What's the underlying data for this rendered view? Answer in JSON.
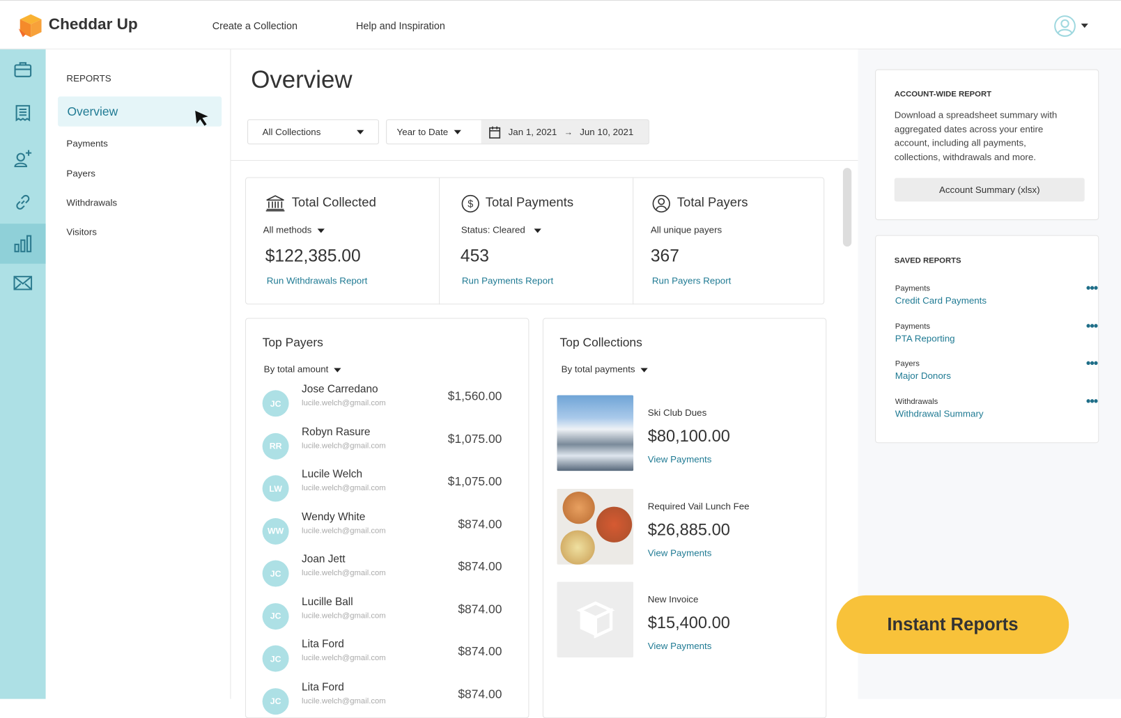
{
  "header": {
    "brand": "Cheddar Up",
    "nav": [
      "Create a Collection",
      "Help and Inspiration"
    ]
  },
  "rail": {
    "icons": [
      "briefcase-icon",
      "receipt-icon",
      "add-user-icon",
      "link-icon",
      "bar-chart-icon",
      "mail-icon"
    ],
    "active": "bar-chart-icon",
    "color": "#ade0e5"
  },
  "sidebar": {
    "heading": "REPORTS",
    "items": [
      "Overview",
      "Payments",
      "Payers",
      "Withdrawals",
      "Visitors"
    ],
    "active": "Overview"
  },
  "main": {
    "title": "Overview",
    "filters": {
      "collection": "All Collections",
      "period": "Year to Date",
      "start": "Jan 1, 2021",
      "arrow": "→",
      "end": "Jun 10, 2021"
    },
    "stats": [
      {
        "title": "Total Collected",
        "icon": "bank-icon",
        "sub": "All methods",
        "value": "$122,385.00",
        "link": "Run Withdrawals Report"
      },
      {
        "title": "Total Payments",
        "icon": "dollar-circle-icon",
        "sub": "Status: Cleared",
        "value": "453",
        "link": "Run Payments Report"
      },
      {
        "title": "Total Payers",
        "icon": "user-circle-icon",
        "sub": "All unique payers",
        "value": "367",
        "link": "Run Payers Report"
      }
    ],
    "top_payers": {
      "title": "Top Payers",
      "sort": "By total amount",
      "rows": [
        {
          "initials": "JC",
          "name": "Jose Carredano",
          "email": "lucile.welch@gmail.com",
          "amount": "$1,560.00"
        },
        {
          "initials": "RR",
          "name": "Robyn Rasure",
          "email": "lucile.welch@gmail.com",
          "amount": "$1,075.00"
        },
        {
          "initials": "LW",
          "name": "Lucile Welch",
          "email": "lucile.welch@gmail.com",
          "amount": "$1,075.00"
        },
        {
          "initials": "WW",
          "name": "Wendy White",
          "email": "lucile.welch@gmail.com",
          "amount": "$874.00"
        },
        {
          "initials": "JC",
          "name": "Joan Jett",
          "email": "lucile.welch@gmail.com",
          "amount": "$874.00"
        },
        {
          "initials": "JC",
          "name": "Lucille Ball",
          "email": "lucile.welch@gmail.com",
          "amount": "$874.00"
        },
        {
          "initials": "JC",
          "name": "Lita Ford",
          "email": "lucile.welch@gmail.com",
          "amount": "$874.00"
        },
        {
          "initials": "JC",
          "name": "Lita Ford",
          "email": "lucile.welch@gmail.com",
          "amount": "$874.00"
        }
      ]
    },
    "top_collections": {
      "title": "Top Collections",
      "sort": "By total payments",
      "rows": [
        {
          "name": "Ski Club Dues",
          "amount": "$80,100.00",
          "link": "View Payments",
          "image": "ski-mountain"
        },
        {
          "name": "Required Vail Lunch Fee",
          "amount": "$26,885.00",
          "link": "View Payments",
          "image": "pizza"
        },
        {
          "name": "New Invoice",
          "amount": "$15,400.00",
          "link": "View Payments",
          "image": "placeholder"
        }
      ]
    }
  },
  "right": {
    "account": {
      "heading": "ACCOUNT-WIDE REPORT",
      "desc": "Download a spreadsheet summary with aggregated dates across your entire account, including all payments, collections, withdrawals and more.",
      "button": "Account Summary (xlsx)"
    },
    "saved": {
      "heading": "SAVED REPORTS",
      "items": [
        {
          "category": "Payments",
          "name": "Credit Card Payments"
        },
        {
          "category": "Payments",
          "name": "PTA Reporting"
        },
        {
          "category": "Payers",
          "name": "Major Donors"
        },
        {
          "category": "Withdrawals",
          "name": "Withdrawal Summary"
        }
      ]
    }
  },
  "cta": {
    "label": "Instant Reports",
    "color": "#f8c23a"
  },
  "colors": {
    "accent": "#1f7a93",
    "rail": "#ade0e5"
  }
}
